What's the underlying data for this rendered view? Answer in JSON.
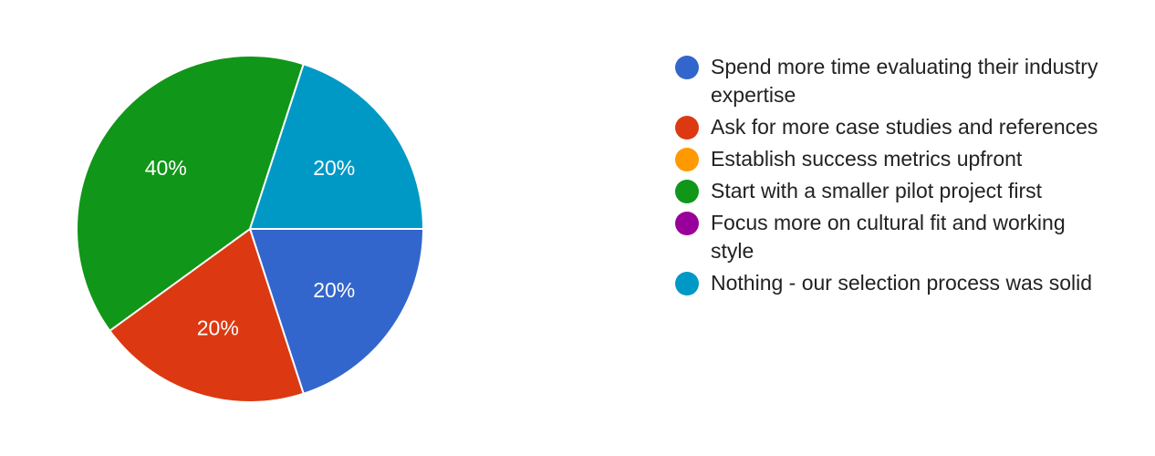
{
  "chart_data": {
    "type": "pie",
    "title": "",
    "legend_position": "right",
    "categories": [
      "Spend more time evaluating their industry expertise",
      "Ask for more case studies and references",
      "Establish success metrics upfront",
      "Start with a smaller pilot project first",
      "Focus more on cultural fit and working style",
      "Nothing - our selection process was solid"
    ],
    "values": [
      20,
      20,
      0,
      40,
      0,
      20
    ],
    "value_labels": [
      "20%",
      "20%",
      "",
      "40%",
      "",
      "20%"
    ],
    "colors": [
      "#3366cc",
      "#dc3912",
      "#ff9900",
      "#109618",
      "#990099",
      "#0099c6"
    ]
  }
}
